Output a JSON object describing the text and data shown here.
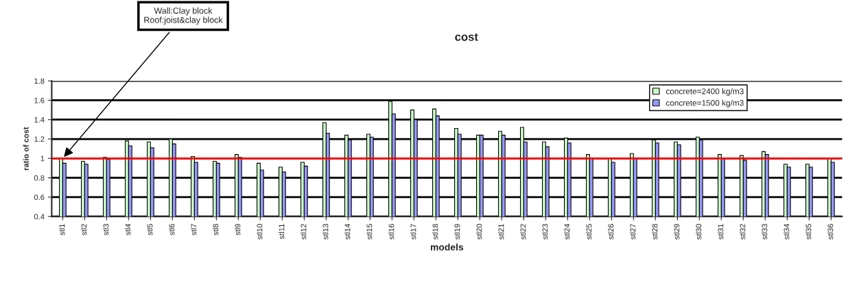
{
  "chart_data": {
    "type": "bar",
    "title": "cost",
    "xlabel": "models",
    "ylabel": "ratio of cost",
    "categories": [
      "stl1",
      "stl2",
      "stl3",
      "stl4",
      "stl5",
      "stl6",
      "stl7",
      "stl8",
      "stl9",
      "stl10",
      "stl11",
      "stl12",
      "stl13",
      "stl14",
      "stl15",
      "stl16",
      "stl17",
      "stl18",
      "stl19",
      "stl20",
      "stl21",
      "stl22",
      "stl23",
      "stl24",
      "stl25",
      "stl26",
      "stl27",
      "stl28",
      "stl29",
      "stl30",
      "stl31",
      "stl32",
      "stl33",
      "stl34",
      "stl35",
      "stl36"
    ],
    "series": [
      {
        "name": "concrete=2400 kg/m3",
        "color": "#ccffcc",
        "values": [
          1.0,
          0.97,
          1.01,
          1.18,
          1.17,
          1.2,
          1.02,
          0.97,
          1.04,
          0.95,
          0.91,
          0.96,
          1.37,
          1.24,
          1.25,
          1.59,
          1.5,
          1.51,
          1.31,
          1.24,
          1.28,
          1.32,
          1.17,
          1.21,
          1.04,
          1.0,
          1.05,
          1.19,
          1.17,
          1.22,
          1.04,
          1.03,
          1.07,
          0.94,
          0.94,
          1.0
        ]
      },
      {
        "name": "concrete=1500 kg/m3",
        "color": "#9999ff",
        "values": [
          0.95,
          0.94,
          0.99,
          1.13,
          1.11,
          1.15,
          0.96,
          0.95,
          1.01,
          0.88,
          0.86,
          0.92,
          1.26,
          1.19,
          1.22,
          1.46,
          1.4,
          1.44,
          1.25,
          1.24,
          1.24,
          1.17,
          1.12,
          1.16,
          1.0,
          0.96,
          1.0,
          1.16,
          1.14,
          1.19,
          1.0,
          0.98,
          1.04,
          0.91,
          0.91,
          0.96
        ]
      }
    ],
    "ylim": [
      0.4,
      1.8
    ],
    "yticks": [
      0.4,
      0.6,
      0.8,
      1,
      1.2,
      1.4,
      1.6,
      1.8
    ],
    "grid": "y",
    "legend": "top right",
    "ref_lines": [
      {
        "axis": "y",
        "value": 1,
        "color": "#ff0000"
      }
    ],
    "annotations": [
      {
        "text": "Wall:Clay block\nRoof:joist&clay block",
        "x": "stl1",
        "y": 1
      }
    ]
  }
}
